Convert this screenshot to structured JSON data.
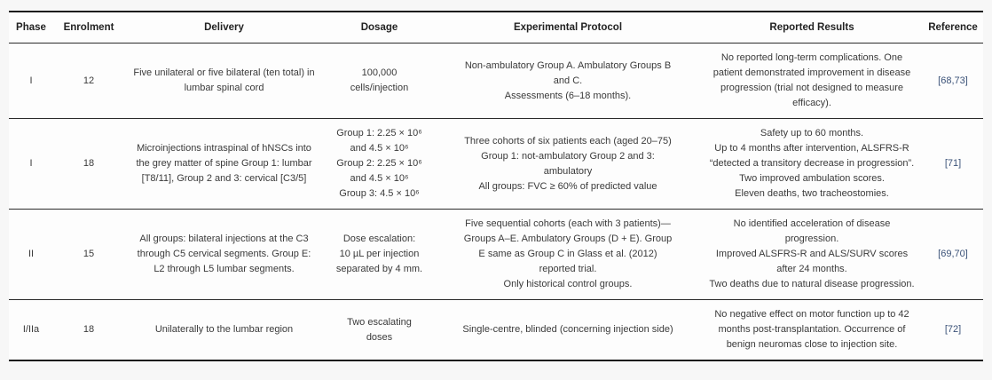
{
  "page": {
    "background": "#f7f7f7",
    "table_background": "#fdfdfd",
    "text_color": "#3a3a3a",
    "rule_color": "#1c1c1c",
    "reference_link_color": "#3b5278"
  },
  "table": {
    "columns": [
      {
        "key": "phase",
        "label": "Phase"
      },
      {
        "key": "enrolment",
        "label": "Enrolment"
      },
      {
        "key": "delivery",
        "label": "Delivery"
      },
      {
        "key": "dosage",
        "label": "Dosage"
      },
      {
        "key": "protocol",
        "label": "Experimental Protocol"
      },
      {
        "key": "results",
        "label": "Reported Results"
      },
      {
        "key": "reference",
        "label": "Reference",
        "accent": true
      }
    ],
    "rows": [
      {
        "phase": "I",
        "enrolment": "12",
        "delivery": [
          "Five unilateral or five bilateral (ten total) in",
          "lumbar spinal cord"
        ],
        "dosage": [
          "100,000",
          "cells/injection"
        ],
        "protocol": [
          "Non-ambulatory Group A. Ambulatory Groups B",
          "and C.",
          "Assessments (6–18 months)."
        ],
        "results": [
          "No reported long-term complications. One",
          "patient demonstrated improvement in disease",
          "progression (trial not designed to measure",
          "efficacy)."
        ],
        "reference": "[68,73]"
      },
      {
        "phase": "I",
        "enrolment": "18",
        "delivery": [
          "Microinjections intraspinal of hNSCs into",
          "the grey matter of spine Group 1: lumbar",
          "[T8/11], Group 2 and 3: cervical [C3/5]"
        ],
        "dosage": [
          "Group 1: 2.25 × 10⁶",
          "and 4.5 × 10⁶",
          "Group 2: 2.25 × 10⁶",
          "and 4.5 × 10⁶",
          "Group 3: 4.5 × 10⁶"
        ],
        "protocol": [
          "Three cohorts of six patients each (aged 20–75)",
          "Group 1: not-ambulatory Group 2 and 3:",
          "ambulatory",
          "All groups: FVC ≥ 60% of predicted value"
        ],
        "results": [
          "Safety up to 60 months.",
          "Up to 4 months after intervention, ALSFRS-R",
          "“detected a transitory decrease in progression”.",
          "Two improved ambulation scores.",
          "Eleven deaths, two tracheostomies."
        ],
        "reference": "[71]"
      },
      {
        "phase": "II",
        "enrolment": "15",
        "delivery": [
          "All groups: bilateral injections at the C3",
          "through C5 cervical segments. Group E:",
          "L2 through L5 lumbar segments."
        ],
        "dosage": [
          "Dose escalation:",
          "10 µL per injection",
          "separated by 4 mm."
        ],
        "protocol": [
          "Five sequential cohorts (each with 3 patients)—",
          "Groups A–E. Ambulatory Groups (D + E). Group",
          "E same as Group C in Glass et al. (2012)",
          "reported trial.",
          "Only historical control groups."
        ],
        "results": [
          "No identified acceleration of disease",
          "progression.",
          "Improved ALSFRS-R and ALS/SURV scores",
          "after 24 months.",
          "Two deaths due to natural disease progression."
        ],
        "reference": "[69,70]"
      },
      {
        "phase": "I/IIa",
        "enrolment": "18",
        "delivery": [
          "Unilaterally to the lumbar region"
        ],
        "dosage": [
          "Two escalating",
          "doses"
        ],
        "protocol": [
          "Single-centre, blinded (concerning injection side)"
        ],
        "results": [
          "No negative effect on motor function up to 42",
          "months post-transplantation. Occurrence of",
          "benign neuromas close to injection site."
        ],
        "reference": "[72]"
      }
    ]
  }
}
